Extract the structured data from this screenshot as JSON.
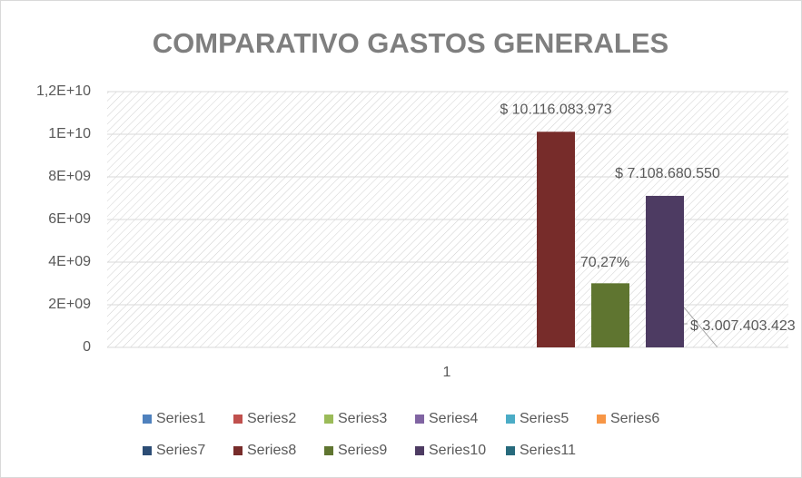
{
  "chart_data": {
    "type": "bar",
    "title": "COMPARATIVO GASTOS GENERALES",
    "categories": [
      "1"
    ],
    "series": [
      {
        "name": "Series1",
        "color": "#4f81bd",
        "values": [
          null
        ]
      },
      {
        "name": "Series2",
        "color": "#c0504d",
        "values": [
          null
        ]
      },
      {
        "name": "Series3",
        "color": "#9bbb59",
        "values": [
          null
        ]
      },
      {
        "name": "Series4",
        "color": "#8064a2",
        "values": [
          null
        ]
      },
      {
        "name": "Series5",
        "color": "#4bacc6",
        "values": [
          null
        ]
      },
      {
        "name": "Series6",
        "color": "#f79646",
        "values": [
          null
        ]
      },
      {
        "name": "Series7",
        "color": "#2c4d75",
        "values": [
          null
        ]
      },
      {
        "name": "Series8",
        "color": "#772c2a",
        "values": [
          10116083973
        ],
        "value_labels": [
          "$ 10.116.083.973"
        ]
      },
      {
        "name": "Series9",
        "color": "#5f7530",
        "values": [
          3007403423
        ],
        "value_labels": [
          "$ 3.007.403.423"
        ]
      },
      {
        "name": "Series10",
        "color": "#4d3b62",
        "values": [
          7108680550
        ],
        "value_labels": [
          "$ 7.108.680.550"
        ]
      },
      {
        "name": "Series11",
        "color": "#276a7c",
        "values": [
          null
        ]
      }
    ],
    "annotations": [
      "70,27%"
    ],
    "ylim": [
      0,
      12000000000
    ],
    "yticks": [
      0,
      {
        "value": 2000000000,
        "label": "2E+09"
      },
      {
        "value": 4000000000,
        "label": "4E+09"
      },
      {
        "value": 6000000000,
        "label": "6E+09"
      },
      {
        "value": 8000000000,
        "label": "8E+09"
      },
      {
        "value": 10000000000,
        "label": "1E+10"
      },
      {
        "value": 12000000000,
        "label": "1,2E+10"
      }
    ],
    "grid": true,
    "legend": "bottom"
  }
}
